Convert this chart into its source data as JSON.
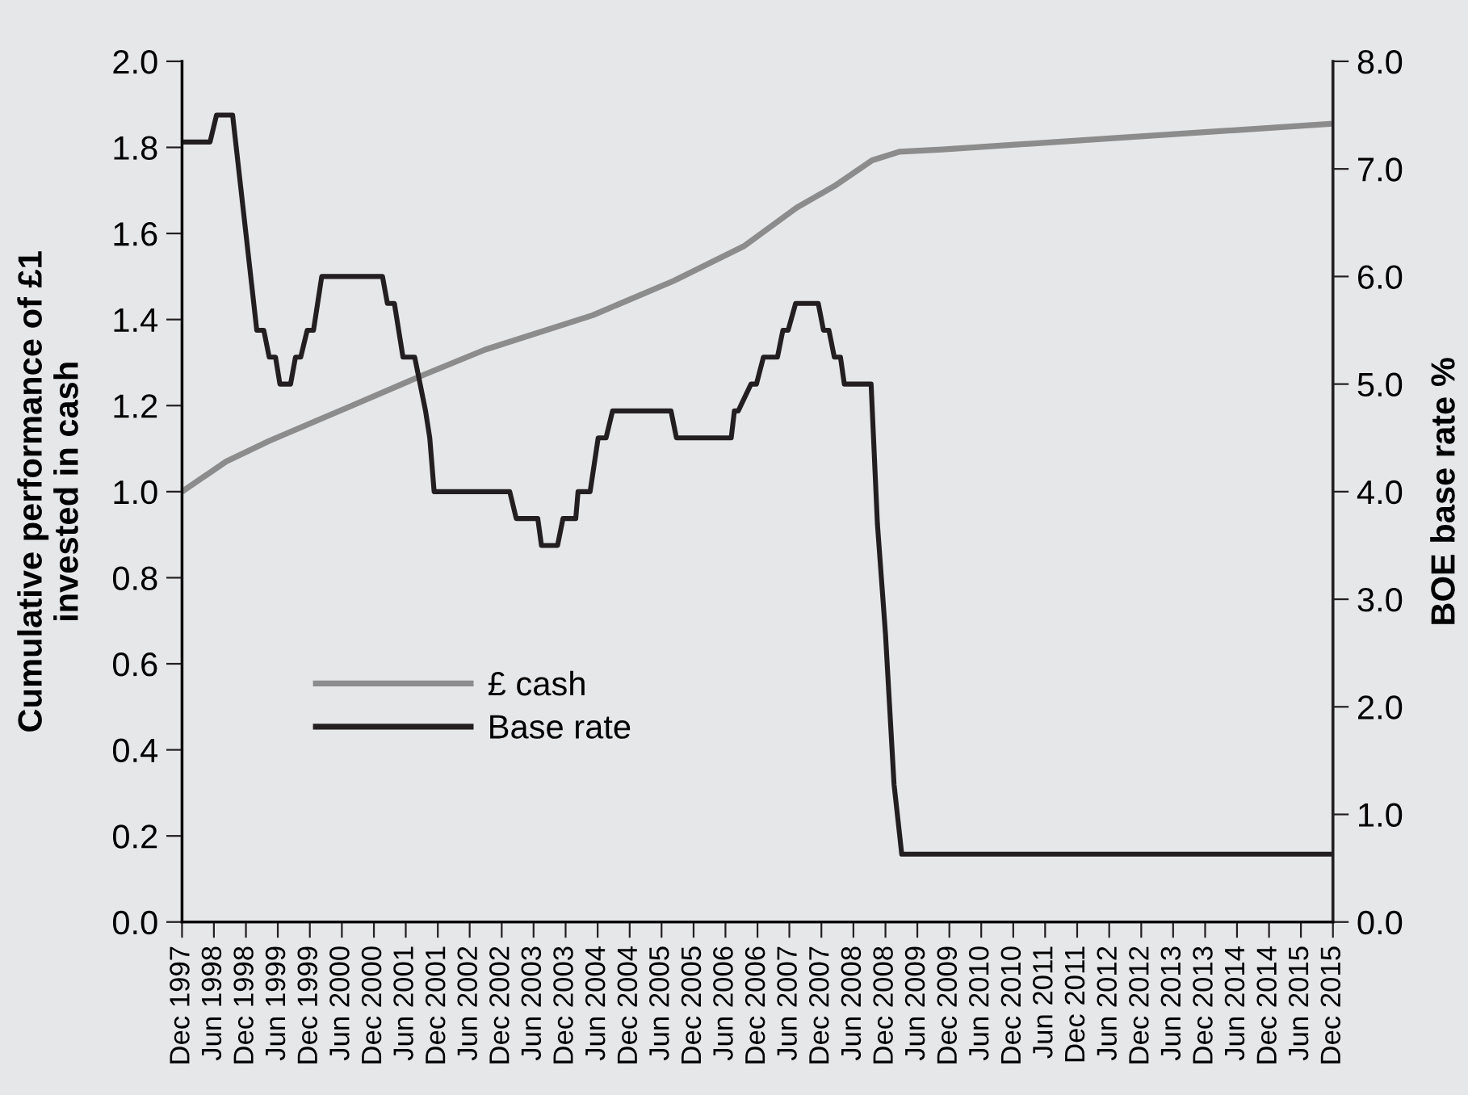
{
  "chart_data": {
    "type": "line",
    "ylabel": "Cumulative performance of £1\ninvested in cash",
    "y2label": "BOE base rate %",
    "series": [
      {
        "name": "£ cash",
        "color": "#8c8c8c",
        "x": [
          "1997-12-01",
          "1998-08-10",
          "1999-04-13",
          "2000-06-19",
          "2001-08-22",
          "2002-08-28",
          "2004-05-04",
          "2005-08-10",
          "2006-09-13",
          "2007-07-13",
          "2008-02-13",
          "2008-09-16",
          "2009-02-19",
          "2009-10-22",
          "2012-05-01",
          "2015-12-01"
        ],
        "values": [
          1.0,
          1.07,
          1.118,
          1.193,
          1.268,
          1.33,
          1.41,
          1.49,
          1.57,
          1.66,
          1.71,
          1.77,
          1.79,
          1.795,
          1.82,
          1.855
        ]
      },
      {
        "name": "Base rate",
        "color": "#231f20",
        "axis": "y2",
        "x": [
          "1997-12-01",
          "1998-05-10",
          "1998-06-16",
          "1998-09-16",
          "1999-02-01",
          "1999-03-13",
          "1999-04-13",
          "1999-05-19",
          "1999-06-13",
          "1999-08-13",
          "1999-09-10",
          "1999-10-10",
          "1999-11-16",
          "1999-12-22",
          "2000-02-07",
          "2001-01-19",
          "2001-02-16",
          "2001-03-28",
          "2001-05-16",
          "2001-07-22",
          "2001-09-22",
          "2001-10-16",
          "2001-11-10",
          "2003-01-16",
          "2003-02-22",
          "2003-06-25",
          "2003-07-16",
          "2003-10-16",
          "2003-11-16",
          "2004-01-28",
          "2004-02-10",
          "2004-04-19",
          "2004-06-04",
          "2004-07-19",
          "2004-08-25",
          "2005-07-25",
          "2005-08-25",
          "2006-07-04",
          "2006-07-22",
          "2006-08-13",
          "2006-10-25",
          "2006-11-25",
          "2007-01-04",
          "2007-03-25",
          "2007-04-25",
          "2007-05-25",
          "2007-07-07",
          "2007-11-13",
          "2007-12-13",
          "2008-01-13",
          "2008-02-13",
          "2008-03-19",
          "2008-04-10",
          "2008-09-10",
          "2008-10-16",
          "2008-12-01",
          "2009-01-19",
          "2009-03-04",
          "2015-12-01"
        ],
        "values": [
          7.25,
          7.25,
          7.5,
          7.5,
          5.5,
          5.5,
          5.25,
          5.25,
          5.0,
          5.0,
          5.25,
          5.25,
          5.5,
          5.5,
          6.0,
          6.0,
          5.75,
          5.75,
          5.25,
          5.25,
          4.75,
          4.5,
          4.0,
          4.0,
          3.75,
          3.75,
          3.5,
          3.5,
          3.75,
          3.75,
          4.0,
          4.0,
          4.5,
          4.5,
          4.75,
          4.75,
          4.5,
          4.5,
          4.75,
          4.75,
          5.0,
          5.0,
          5.25,
          5.25,
          5.5,
          5.5,
          5.75,
          5.75,
          5.5,
          5.5,
          5.25,
          5.25,
          5.0,
          5.0,
          3.7,
          2.68,
          1.28,
          0.63,
          0.63
        ]
      }
    ],
    "xlim": [
      "1997-12",
      "2015-12"
    ],
    "xticks": [
      {
        "value": "1997-12",
        "label": "Dec 1997"
      },
      {
        "value": "1998-06",
        "label": "Jun 1998"
      },
      {
        "value": "1998-12",
        "label": "Dec 1998"
      },
      {
        "value": "1999-06",
        "label": "Jun 1999"
      },
      {
        "value": "1999-12",
        "label": "Dec 1999"
      },
      {
        "value": "2000-06",
        "label": "Jun 2000"
      },
      {
        "value": "2000-12",
        "label": "Dec 2000"
      },
      {
        "value": "2001-06",
        "label": "Jun 2001"
      },
      {
        "value": "2001-12",
        "label": "Dec 2001"
      },
      {
        "value": "2002-06",
        "label": "Jun 2002"
      },
      {
        "value": "2002-12",
        "label": "Dec 2002"
      },
      {
        "value": "2003-06",
        "label": "Jun 2003"
      },
      {
        "value": "2003-12",
        "label": "Dec 2003"
      },
      {
        "value": "2004-06",
        "label": "Jun 2004"
      },
      {
        "value": "2004-12",
        "label": "Dec 2004"
      },
      {
        "value": "2005-06",
        "label": "Jun 2005"
      },
      {
        "value": "2005-12",
        "label": "Dec 2005"
      },
      {
        "value": "2006-06",
        "label": "Jun 2006"
      },
      {
        "value": "2006-12",
        "label": "Dec 2006"
      },
      {
        "value": "2007-06",
        "label": "Jun 2007"
      },
      {
        "value": "2007-12",
        "label": "Dec 2007"
      },
      {
        "value": "2008-06",
        "label": "Jun 2008"
      },
      {
        "value": "2008-12",
        "label": "Dec 2008"
      },
      {
        "value": "2009-06",
        "label": "Jun 2009"
      },
      {
        "value": "2009-12",
        "label": "Dec 2009"
      },
      {
        "value": "2010-06",
        "label": "Jun 2010"
      },
      {
        "value": "2010-12",
        "label": "Dec 2010"
      },
      {
        "value": "2011-06",
        "label": "Jun 2011"
      },
      {
        "value": "2011-12",
        "label": "Dec 2011"
      },
      {
        "value": "2012-06",
        "label": "Jun 2012"
      },
      {
        "value": "2012-12",
        "label": "Dec 2012"
      },
      {
        "value": "2013-06",
        "label": "Jun 2013"
      },
      {
        "value": "2013-12",
        "label": "Dec 2013"
      },
      {
        "value": "2014-06",
        "label": "Jun 2014"
      },
      {
        "value": "2014-12",
        "label": "Dec 2014"
      },
      {
        "value": "2015-06",
        "label": "Jun 2015"
      },
      {
        "value": "2015-12",
        "label": "Dec 2015"
      }
    ],
    "ylim": [
      0.0,
      2.0
    ],
    "yticks": [
      {
        "value": 0,
        "label": "0.0"
      },
      0.2,
      0.4,
      0.6,
      0.8,
      {
        "value": 1,
        "label": "1.0"
      },
      1.2,
      1.4,
      1.6,
      1.8,
      {
        "value": 2,
        "label": "2.0"
      }
    ],
    "y2lim": [
      0.0,
      8.0
    ],
    "y2ticks": [
      {
        "value": 0,
        "label": "0.0"
      },
      {
        "value": 1,
        "label": "1.0"
      },
      {
        "value": 2,
        "label": "2.0"
      },
      {
        "value": 3,
        "label": "3.0"
      },
      {
        "value": 4,
        "label": "4.0"
      },
      {
        "value": 5,
        "label": "5.0"
      },
      {
        "value": 6,
        "label": "6.0"
      },
      {
        "value": 7,
        "label": "7.0"
      },
      {
        "value": 8,
        "label": "8.0"
      }
    ],
    "grid": false,
    "legend": "left",
    "line_style": "solid",
    "marker": "none"
  }
}
